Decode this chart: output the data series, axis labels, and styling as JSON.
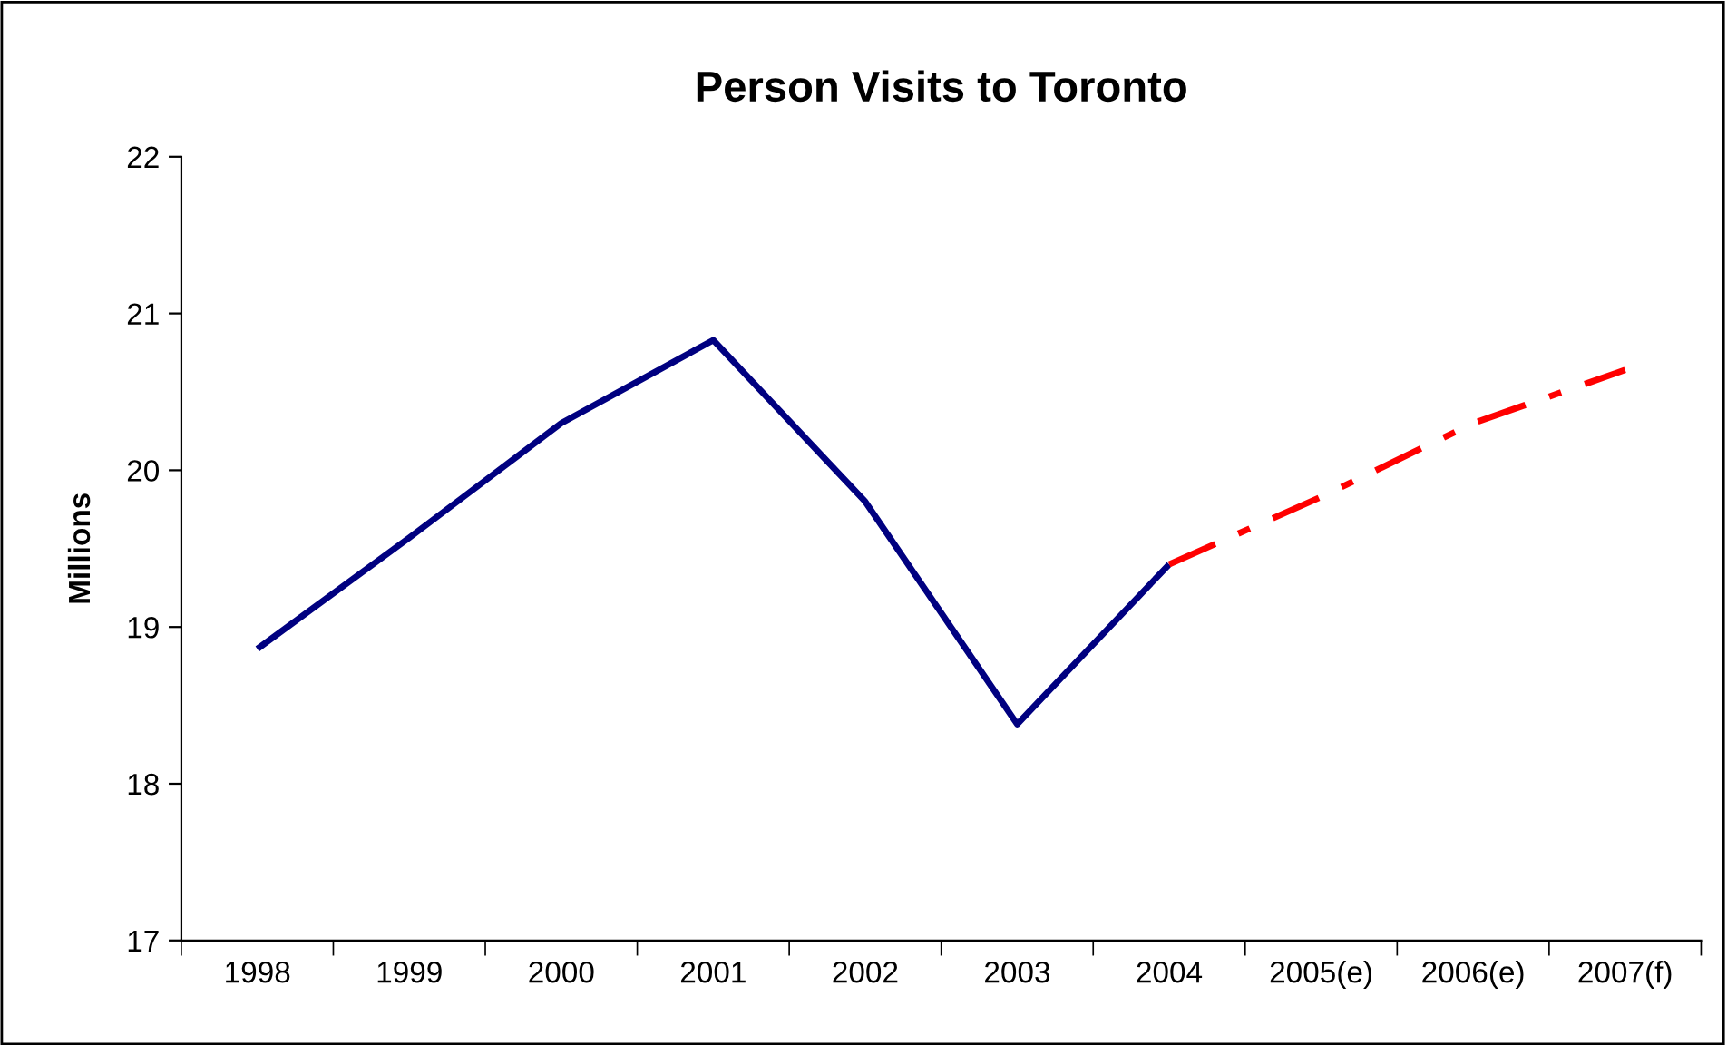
{
  "chart_data": {
    "type": "line",
    "title": "Person Visits to Toronto",
    "ylabel": "Millions",
    "categories": [
      "1998",
      "1999",
      "2000",
      "2001",
      "2002",
      "2003",
      "2004",
      "2005(e)",
      "2006(e)",
      "2007(f)"
    ],
    "series": [
      {
        "color": "#000080",
        "line_style": "solid",
        "values": [
          18.86,
          19.57,
          20.3,
          20.83,
          19.8,
          18.38,
          19.4,
          null,
          null,
          null
        ]
      },
      {
        "color": "#ff0000",
        "line_style": "dashed",
        "values": [
          null,
          null,
          null,
          null,
          null,
          null,
          19.4,
          19.83,
          20.3,
          20.64
        ]
      }
    ],
    "ylim": [
      17,
      22
    ],
    "yticks": [
      17,
      18,
      19,
      20,
      21,
      22
    ],
    "grid": false,
    "legend": false,
    "marker": "none"
  }
}
